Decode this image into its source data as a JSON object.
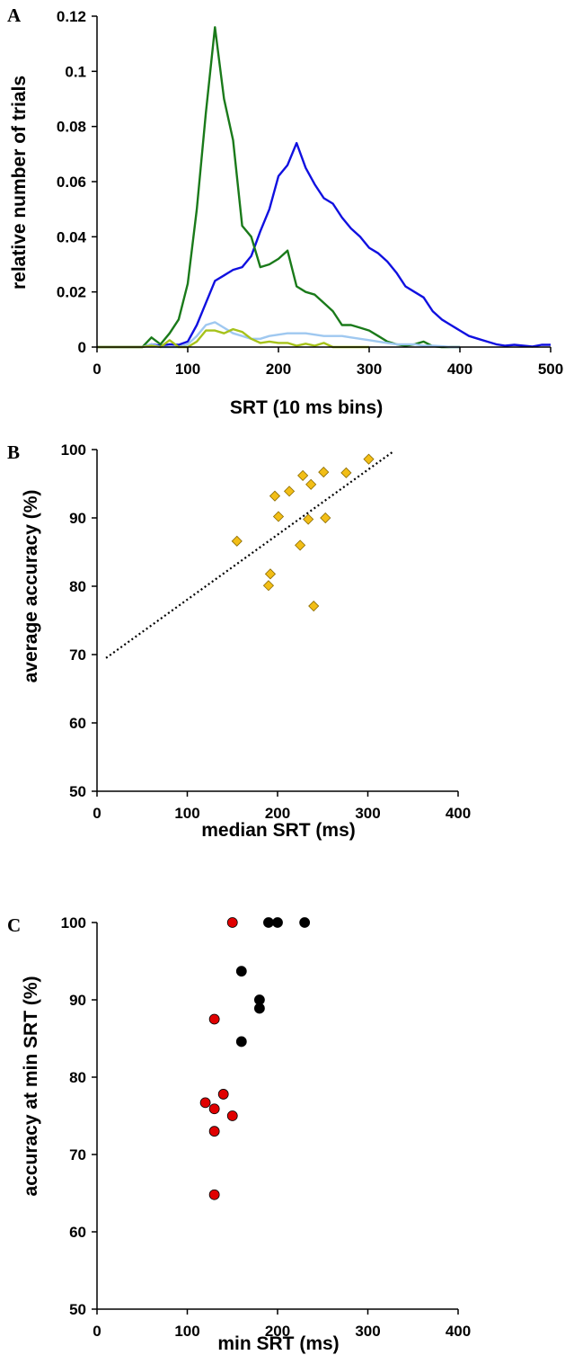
{
  "chart_data": [
    {
      "panel": "A",
      "type": "line",
      "xlabel": "SRT (10 ms bins)",
      "ylabel": "relative number of trials",
      "xlim": [
        0,
        500
      ],
      "ylim": [
        0,
        0.12
      ],
      "xticks": [
        0,
        100,
        200,
        300,
        400,
        500
      ],
      "yticks": [
        0,
        0.02,
        0.04,
        0.06,
        0.08,
        0.1,
        0.12
      ],
      "ytick_labels": [
        "0",
        "0.02",
        "0.04",
        "0.06",
        "0.08",
        "0.1",
        "0.12"
      ],
      "grid": false,
      "series": [
        {
          "color": "#1010e0",
          "x": [
            0,
            50,
            60,
            70,
            80,
            90,
            100,
            110,
            120,
            130,
            140,
            150,
            160,
            170,
            180,
            190,
            200,
            210,
            220,
            230,
            240,
            250,
            260,
            270,
            280,
            290,
            300,
            310,
            320,
            330,
            340,
            350,
            360,
            370,
            380,
            390,
            400,
            410,
            420,
            430,
            440,
            450,
            460,
            470,
            480,
            490,
            500
          ],
          "y": [
            0,
            0,
            0.001,
            0.0005,
            0.001,
            0.0008,
            0.002,
            0.008,
            0.016,
            0.024,
            0.026,
            0.028,
            0.029,
            0.033,
            0.042,
            0.05,
            0.062,
            0.066,
            0.074,
            0.065,
            0.059,
            0.054,
            0.052,
            0.047,
            0.043,
            0.04,
            0.036,
            0.034,
            0.031,
            0.027,
            0.022,
            0.02,
            0.018,
            0.013,
            0.01,
            0.008,
            0.006,
            0.004,
            0.003,
            0.002,
            0.001,
            0.0005,
            0.0008,
            0.0005,
            0.0002,
            0.0008,
            0.0008
          ]
        },
        {
          "color": "#1a7a1a",
          "x": [
            0,
            50,
            60,
            70,
            80,
            90,
            100,
            110,
            120,
            130,
            140,
            150,
            160,
            170,
            180,
            190,
            200,
            210,
            220,
            230,
            240,
            250,
            260,
            270,
            280,
            290,
            300,
            310,
            320,
            330,
            340,
            350,
            360,
            370,
            380,
            390,
            400
          ],
          "y": [
            0,
            0,
            0.0035,
            0.001,
            0.005,
            0.01,
            0.023,
            0.05,
            0.085,
            0.116,
            0.09,
            0.075,
            0.044,
            0.04,
            0.029,
            0.03,
            0.032,
            0.035,
            0.022,
            0.02,
            0.019,
            0.016,
            0.013,
            0.008,
            0.008,
            0.007,
            0.006,
            0.004,
            0.002,
            0.001,
            0.0005,
            0.001,
            0.002,
            0.0003,
            0,
            0,
            0
          ]
        },
        {
          "color": "#9fc8f0",
          "x": [
            0,
            50,
            60,
            70,
            80,
            90,
            100,
            110,
            120,
            130,
            140,
            150,
            160,
            170,
            180,
            190,
            200,
            210,
            220,
            230,
            240,
            250,
            260,
            270,
            280,
            290,
            300,
            310,
            320,
            330,
            340,
            350,
            360,
            370,
            380,
            390,
            400
          ],
          "y": [
            0,
            0,
            0.001,
            0,
            0,
            0,
            0.001,
            0.004,
            0.008,
            0.009,
            0.007,
            0.005,
            0.004,
            0.003,
            0.003,
            0.004,
            0.0045,
            0.005,
            0.005,
            0.005,
            0.0045,
            0.004,
            0.004,
            0.004,
            0.0035,
            0.003,
            0.0025,
            0.002,
            0.0015,
            0.001,
            0.001,
            0.001,
            0.0005,
            0.0005,
            0.0003,
            0,
            0
          ]
        },
        {
          "color": "#a6c21a",
          "x": [
            0,
            50,
            60,
            70,
            80,
            90,
            100,
            110,
            120,
            130,
            140,
            150,
            160,
            170,
            180,
            190,
            200,
            210,
            220,
            230,
            240,
            250,
            260,
            270,
            280,
            290,
            300
          ],
          "y": [
            0,
            0,
            0.0005,
            0,
            0.0025,
            0,
            0,
            0.002,
            0.006,
            0.006,
            0.005,
            0.0065,
            0.0055,
            0.003,
            0.0015,
            0.002,
            0.0015,
            0.0015,
            0.0005,
            0.0012,
            0.0005,
            0.0015,
            0,
            0,
            0,
            0,
            0
          ]
        }
      ]
    },
    {
      "panel": "B",
      "type": "scatter",
      "xlabel": "median SRT (ms)",
      "ylabel": "average accuracy (%)",
      "xlim": [
        0,
        400
      ],
      "ylim": [
        50,
        100
      ],
      "xticks": [
        0,
        100,
        200,
        300,
        400
      ],
      "yticks": [
        50,
        60,
        70,
        80,
        90,
        100
      ],
      "grid": false,
      "marker": "diamond",
      "marker_color": "#f2be16",
      "points": [
        {
          "x": 155,
          "y": 86.6
        },
        {
          "x": 190,
          "y": 80.1
        },
        {
          "x": 192,
          "y": 81.8
        },
        {
          "x": 197,
          "y": 93.2
        },
        {
          "x": 201,
          "y": 90.2
        },
        {
          "x": 213,
          "y": 93.9
        },
        {
          "x": 225,
          "y": 86.0
        },
        {
          "x": 228,
          "y": 96.2
        },
        {
          "x": 234,
          "y": 89.8
        },
        {
          "x": 237,
          "y": 94.9
        },
        {
          "x": 240,
          "y": 77.1
        },
        {
          "x": 251,
          "y": 96.7
        },
        {
          "x": 253,
          "y": 90.0
        },
        {
          "x": 276,
          "y": 96.6
        },
        {
          "x": 301,
          "y": 98.6
        }
      ],
      "trendline": {
        "x": [
          10,
          328
        ],
        "y": [
          69.5,
          99.7
        ],
        "style": "dotted"
      }
    },
    {
      "panel": "C",
      "type": "scatter",
      "xlabel": "min SRT (ms)",
      "ylabel": "accuracy at min SRT (%)",
      "xlim": [
        0,
        400
      ],
      "ylim": [
        50,
        100
      ],
      "xticks": [
        0,
        100,
        200,
        300,
        400
      ],
      "yticks": [
        50,
        60,
        70,
        80,
        90,
        100
      ],
      "grid": false,
      "marker": "circle",
      "series": [
        {
          "color": "#e00000",
          "points": [
            {
              "x": 150,
              "y": 100
            },
            {
              "x": 130,
              "y": 87.5
            },
            {
              "x": 140,
              "y": 77.8
            },
            {
              "x": 120,
              "y": 76.7
            },
            {
              "x": 130,
              "y": 75.9
            },
            {
              "x": 150,
              "y": 75.0
            },
            {
              "x": 130,
              "y": 73.0
            },
            {
              "x": 130,
              "y": 64.8
            }
          ]
        },
        {
          "color": "#000000",
          "points": [
            {
              "x": 190,
              "y": 100
            },
            {
              "x": 200,
              "y": 100
            },
            {
              "x": 230,
              "y": 100
            },
            {
              "x": 160,
              "y": 93.7
            },
            {
              "x": 180,
              "y": 90.0
            },
            {
              "x": 180,
              "y": 88.9
            },
            {
              "x": 160,
              "y": 84.6
            }
          ]
        }
      ]
    }
  ]
}
